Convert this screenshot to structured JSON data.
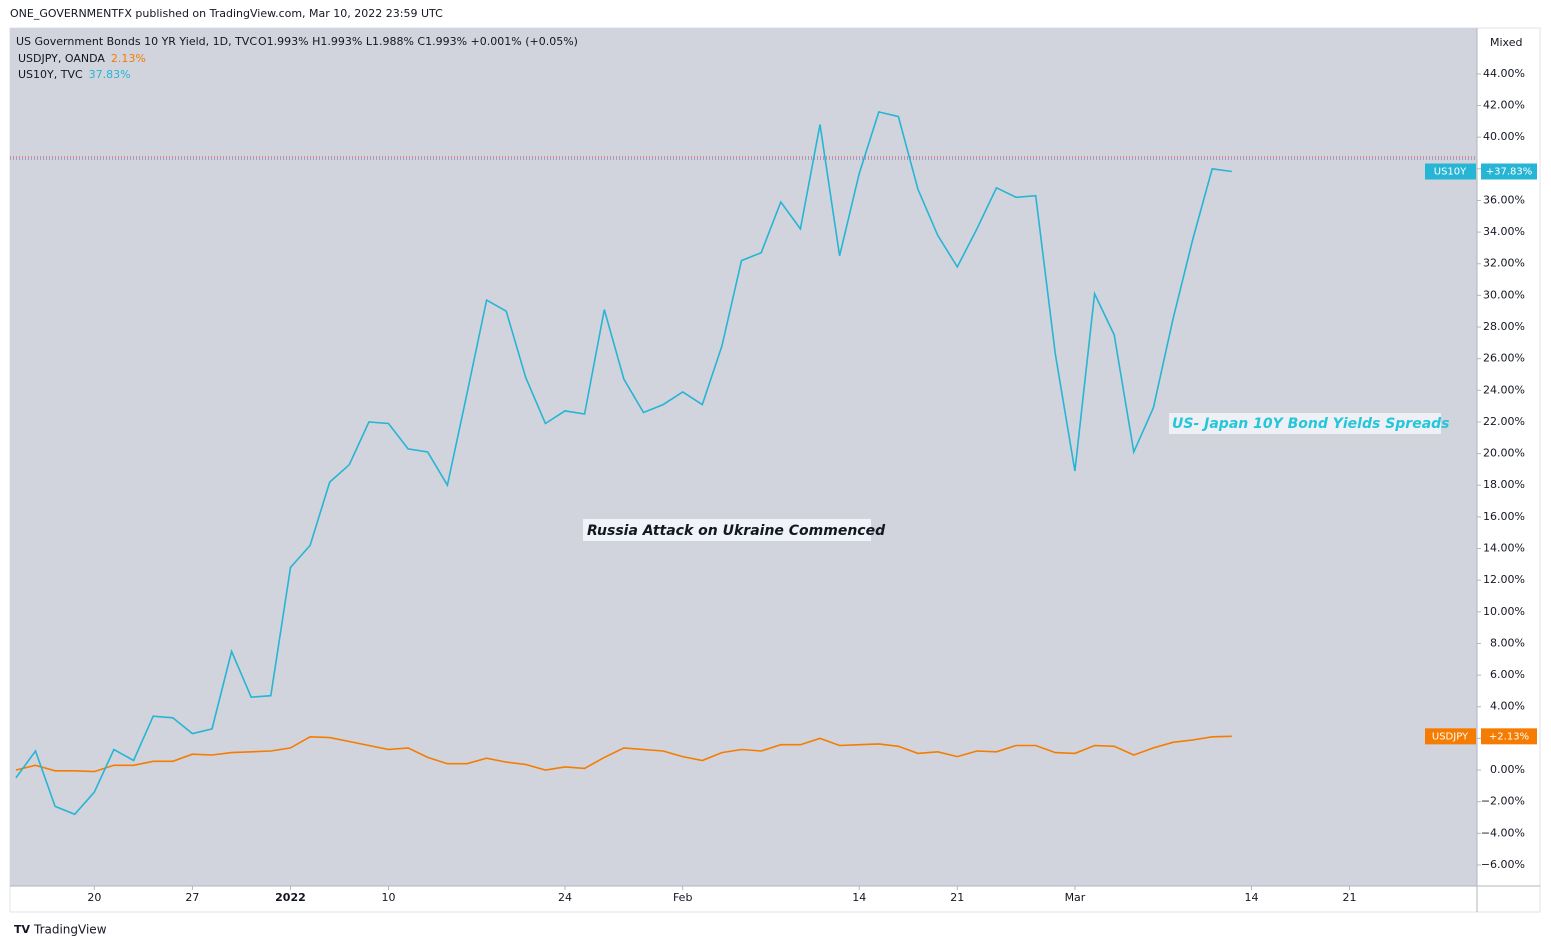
{
  "header": "ONE_GOVERNMENTFX published on TradingView.com, Mar 10, 2022 23:59 UTC",
  "footer": "TradingView",
  "chart_data": {
    "type": "line",
    "legend": {
      "title": "US Government Bonds 10 YR Yield, 1D, TVC",
      "ohlc": [
        "O1.993%",
        "H1.993%",
        "L1.988%",
        "C1.993%"
      ],
      "change": "+0.001% (+0.05%)"
    },
    "scale_mode": "Mixed",
    "annotations": [
      "Russia Attack on Ukraine Commenced",
      "US- Japan 10Y Bond Yields Spreads"
    ],
    "series": [
      {
        "name": "USDJPY, OANDA",
        "legend_value": "2.13%",
        "badge": "USDJPY",
        "badge_value": "+2.13%",
        "color": "#f57c00",
        "values": [
          0.0,
          0.3,
          -0.05,
          -0.05,
          -0.1,
          0.3,
          0.3,
          0.55,
          0.55,
          1.0,
          0.95,
          1.1,
          1.15,
          1.2,
          1.4,
          2.1,
          2.05,
          1.8,
          1.55,
          1.3,
          1.4,
          0.8,
          0.4,
          0.4,
          0.75,
          0.5,
          0.35,
          0.0,
          0.2,
          0.1,
          0.8,
          1.4,
          1.3,
          1.2,
          0.85,
          0.6,
          1.1,
          1.3,
          1.2,
          1.6,
          1.6,
          2.0,
          1.55,
          1.6,
          1.65,
          1.5,
          1.05,
          1.15,
          0.85,
          1.2,
          1.15,
          1.55,
          1.55,
          1.1,
          1.05,
          1.55,
          1.5,
          0.95,
          1.4,
          1.75,
          1.9,
          2.1,
          2.13
        ]
      },
      {
        "name": "US10Y, TVC",
        "legend_value": "37.83%",
        "badge": "US10Y",
        "badge_value": "+37.83%",
        "color": "#26b5d4",
        "values": [
          -0.5,
          1.2,
          -2.3,
          -2.8,
          -1.4,
          1.3,
          0.6,
          3.4,
          3.3,
          2.3,
          2.6,
          7.5,
          4.6,
          4.7,
          12.8,
          14.2,
          18.2,
          19.3,
          22.0,
          21.9,
          20.3,
          20.1,
          18.0,
          23.8,
          29.7,
          29.0,
          24.8,
          21.9,
          22.7,
          22.5,
          29.1,
          24.7,
          22.6,
          23.1,
          23.9,
          23.1,
          26.8,
          32.2,
          32.7,
          35.9,
          34.2,
          40.8,
          32.5,
          37.7,
          41.6,
          41.3,
          36.7,
          33.8,
          31.8,
          34.2,
          36.8,
          36.2,
          36.3,
          26.3,
          18.9,
          30.1,
          27.5,
          20.1,
          22.9,
          28.5,
          33.5,
          38.0,
          37.83
        ]
      }
    ],
    "xlim": [
      -0.3,
      74.5
    ],
    "xticks": [
      {
        "value": 4,
        "label": "20"
      },
      {
        "value": 9,
        "label": "27"
      },
      {
        "value": 14,
        "label": "2022"
      },
      {
        "value": 19,
        "label": "10"
      },
      {
        "value": 28,
        "label": "24"
      },
      {
        "value": 34,
        "label": "Feb"
      },
      {
        "value": 43,
        "label": "14"
      },
      {
        "value": 48,
        "label": "21"
      },
      {
        "value": 54,
        "label": "Mar"
      },
      {
        "value": 63,
        "label": "14"
      },
      {
        "value": 68,
        "label": "21"
      }
    ],
    "ylim": [
      -7.33,
      46.9
    ],
    "yticks": [
      {
        "value": -6,
        "label": "−6.00%"
      },
      {
        "value": -4,
        "label": "−4.00%"
      },
      {
        "value": -2,
        "label": "−2.00%"
      },
      {
        "value": 0,
        "label": "0.00%"
      },
      {
        "value": 2,
        "label": "2.00%"
      },
      {
        "value": 4,
        "label": "4.00%"
      },
      {
        "value": 6,
        "label": "6.00%"
      },
      {
        "value": 8,
        "label": "8.00%"
      },
      {
        "value": 10,
        "label": "10.00%"
      },
      {
        "value": 12,
        "label": "12.00%"
      },
      {
        "value": 14,
        "label": "14.00%"
      },
      {
        "value": 16,
        "label": "16.00%"
      },
      {
        "value": 18,
        "label": "18.00%"
      },
      {
        "value": 20,
        "label": "20.00%"
      },
      {
        "value": 22,
        "label": "22.00%"
      },
      {
        "value": 24,
        "label": "24.00%"
      },
      {
        "value": 26,
        "label": "26.00%"
      },
      {
        "value": 28,
        "label": "28.00%"
      },
      {
        "value": 30,
        "label": "30.00%"
      },
      {
        "value": 32,
        "label": "32.00%"
      },
      {
        "value": 34,
        "label": "34.00%"
      },
      {
        "value": 36,
        "label": "36.00%"
      },
      {
        "value": 38,
        "label": "38.00%"
      },
      {
        "value": 40,
        "label": "40.00%"
      },
      {
        "value": 42,
        "label": "42.00%"
      },
      {
        "value": 44,
        "label": "44.00%"
      }
    ]
  }
}
